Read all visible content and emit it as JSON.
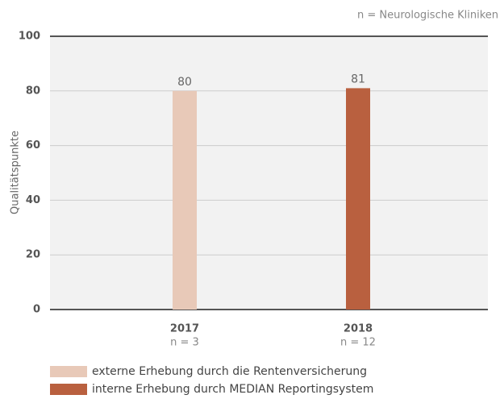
{
  "chart_data": {
    "type": "bar",
    "annotation": "n = Neurologische Kliniken",
    "y_label": "Qualitätspunkte",
    "categories": [
      "2017",
      "2018"
    ],
    "sublabels": [
      "n = 3",
      "n = 12"
    ],
    "series": [
      {
        "name": "externe Erhebung durch die Rentenversicherung",
        "color": "#e8c9b8",
        "values": [
          80,
          null
        ]
      },
      {
        "name": "interne Erhebung durch MEDIAN Reportingsystem",
        "color": "#b9603f",
        "values": [
          null,
          81
        ]
      }
    ],
    "ylim": [
      0,
      100
    ],
    "yticks": [
      0,
      20,
      40,
      60,
      80,
      100
    ],
    "grid": true,
    "legend": "bottom"
  }
}
